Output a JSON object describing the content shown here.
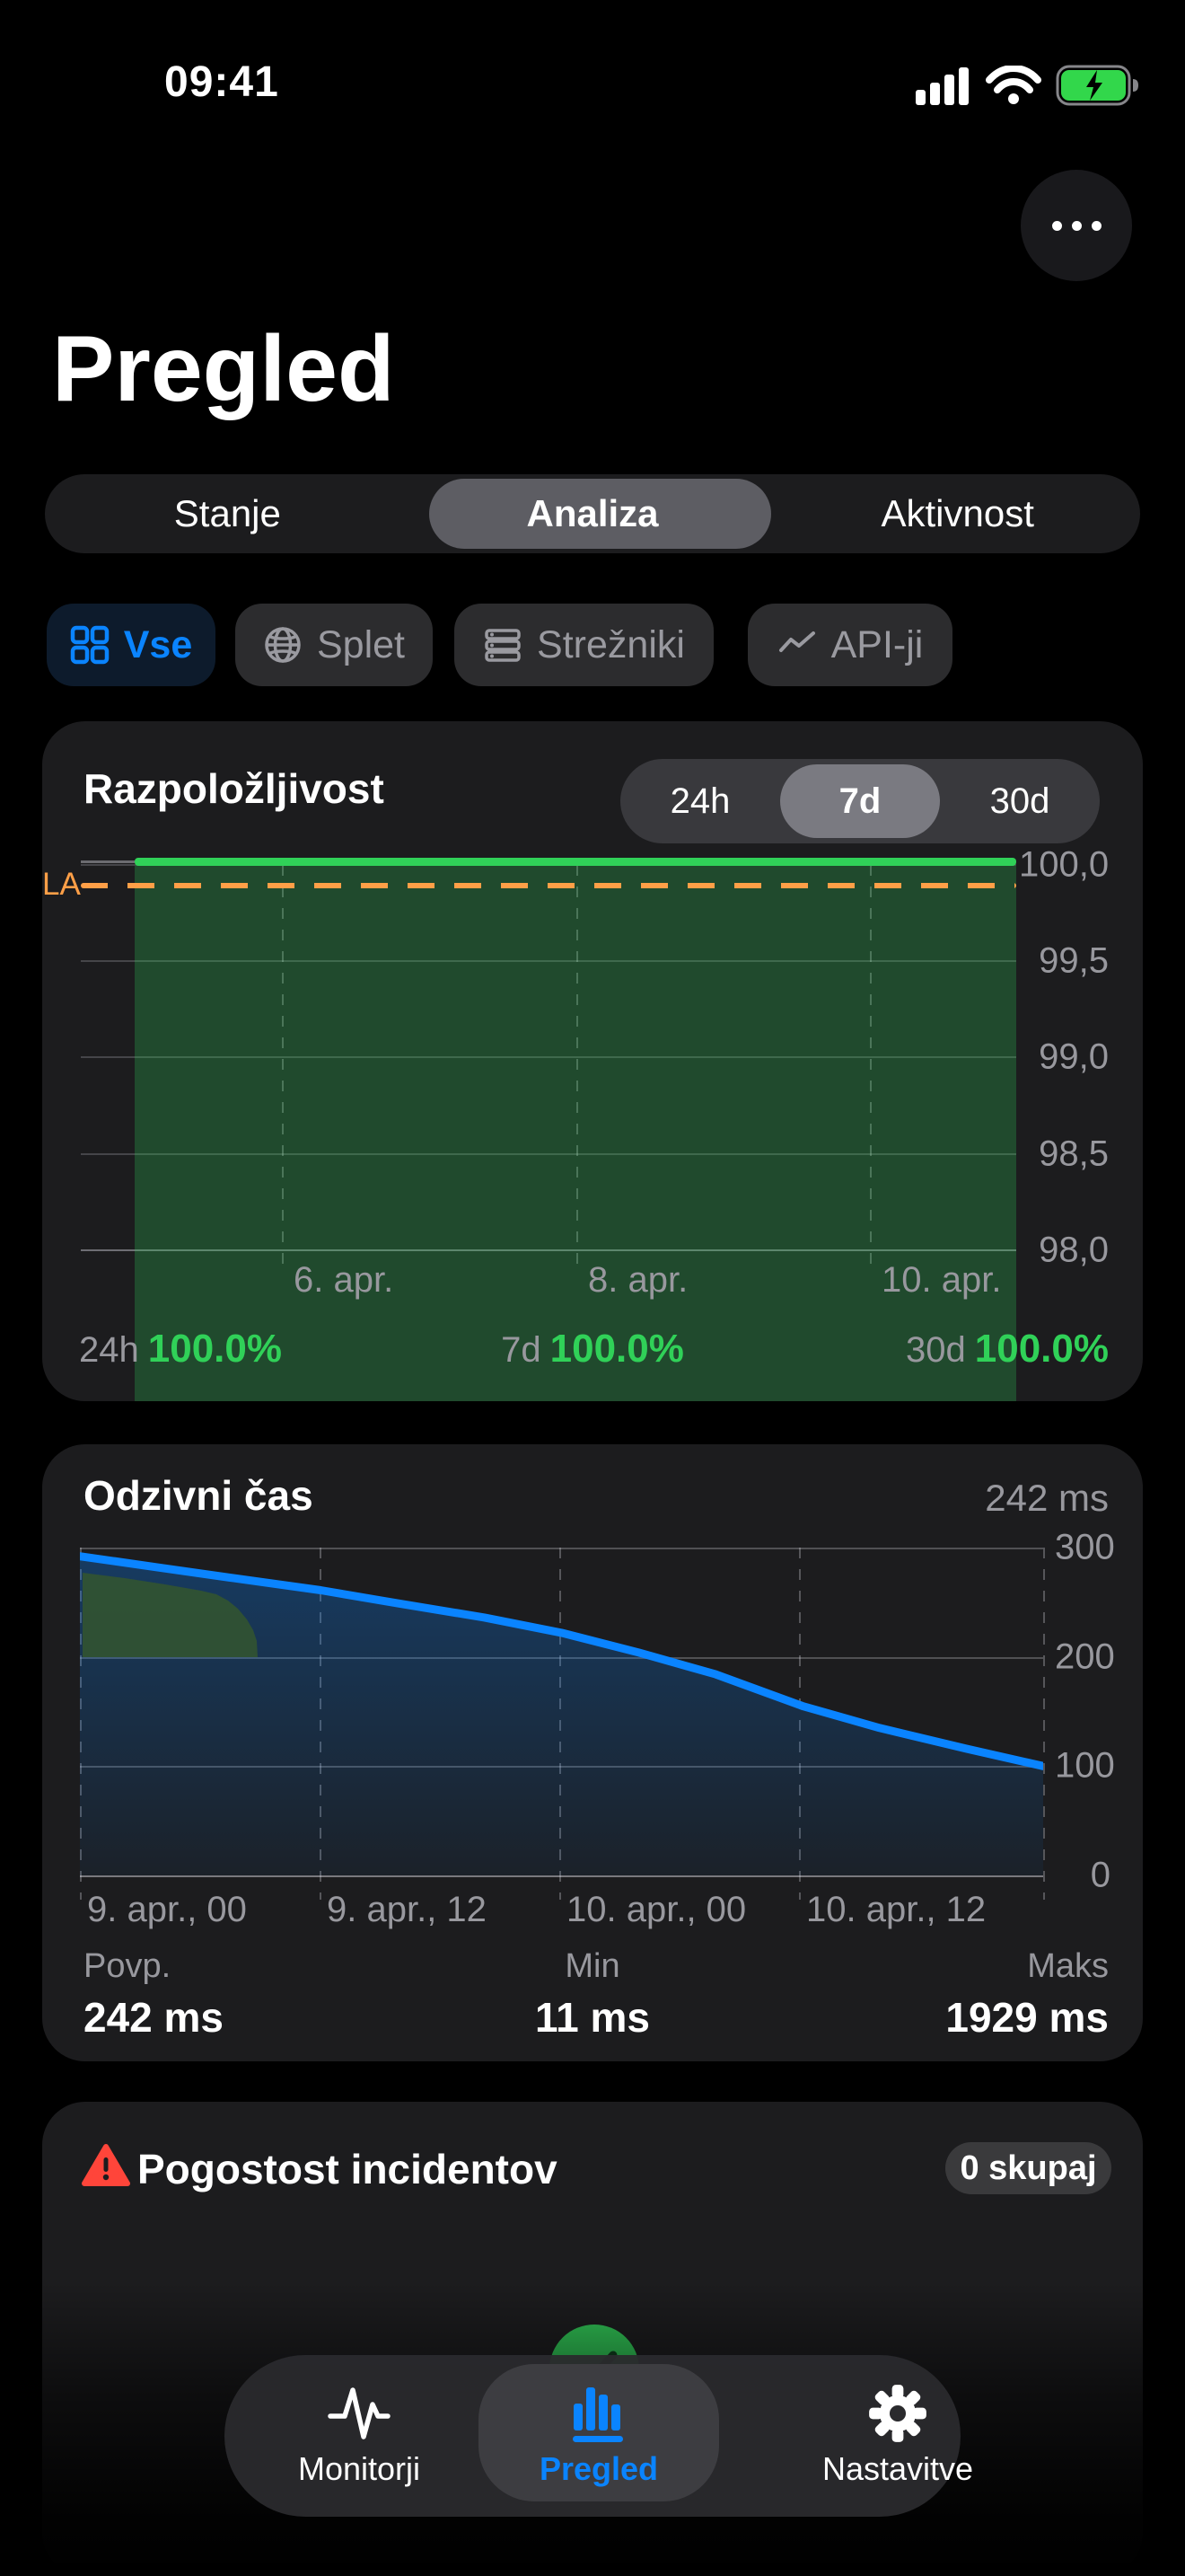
{
  "status_bar": {
    "time": "09:41"
  },
  "header": {
    "title": "Pregled"
  },
  "view_tabs": {
    "items": [
      {
        "label": "Stanje",
        "selected": false
      },
      {
        "label": "Analiza",
        "selected": true
      },
      {
        "label": "Aktivnost",
        "selected": false
      }
    ]
  },
  "filters": {
    "items": [
      {
        "label": "Vse",
        "icon": "grid-icon",
        "selected": true
      },
      {
        "label": "Splet",
        "icon": "globe-icon",
        "selected": false
      },
      {
        "label": "Strežniki",
        "icon": "server-icon",
        "selected": false
      },
      {
        "label": "API-ji",
        "icon": "zigzag-icon",
        "selected": false
      }
    ]
  },
  "availability_card": {
    "title": "Razpoložljivost",
    "ranges": [
      "24h",
      "7d",
      "30d"
    ],
    "selected_range": "7d",
    "sla_label": "LA",
    "y_ticks": [
      "100,0",
      "99,5",
      "99,0",
      "98,5",
      "98,0"
    ],
    "x_ticks": [
      "6. apr.",
      "8. apr.",
      "10. apr."
    ],
    "summary": [
      {
        "label": "24h",
        "value": "100.0%"
      },
      {
        "label": "7d",
        "value": "100.0%"
      },
      {
        "label": "30d",
        "value": "100.0%"
      }
    ]
  },
  "response_card": {
    "title": "Odzivni čas",
    "current": "242 ms",
    "y_ticks": [
      "300",
      "200",
      "100",
      "0"
    ],
    "x_ticks": [
      "9. apr., 00",
      "9. apr., 12",
      "10. apr., 00",
      "10. apr., 12"
    ],
    "stats": [
      {
        "label": "Povp.",
        "value": "242 ms"
      },
      {
        "label": "Min",
        "value": "11 ms"
      },
      {
        "label": "Maks",
        "value": "1929 ms"
      }
    ]
  },
  "incidents_card": {
    "title": "Pogostost incidentov",
    "badge": "0 skupaj"
  },
  "tab_bar": {
    "items": [
      {
        "label": "Monitorji",
        "icon": "pulse-icon",
        "selected": false
      },
      {
        "label": "Pregled",
        "icon": "bar-chart-icon",
        "selected": true
      },
      {
        "label": "Nastavitve",
        "icon": "gear-icon",
        "selected": false
      }
    ]
  },
  "colors": {
    "accent_blue": "#0A84FF",
    "green": "#30D158",
    "orange": "#FF9F47",
    "red": "#FF453A",
    "card_bg": "#1C1C1E",
    "gray_text": "#98989E"
  },
  "chart_data": [
    {
      "type": "area",
      "title": "Razpoložljivost",
      "range": "7d",
      "ylim": [
        98.0,
        100.0
      ],
      "y_ticks": [
        100.0,
        99.5,
        99.0,
        98.5,
        98.0
      ],
      "x_ticks": [
        "6. apr.",
        "8. apr.",
        "10. apr."
      ],
      "series": [
        {
          "name": "uptime_pct",
          "values": [
            100.0,
            100.0,
            100.0,
            100.0,
            100.0,
            100.0,
            100.0
          ]
        }
      ],
      "sla_line": {
        "label": "LA",
        "approx_value": 99.9
      },
      "summary": {
        "24h": "100.0%",
        "7d": "100.0%",
        "30d": "100.0%"
      },
      "legend": "none",
      "grid": true
    },
    {
      "type": "line",
      "title": "Odzivni čas",
      "unit": "ms",
      "ylim": [
        0,
        300
      ],
      "y_ticks": [
        300,
        200,
        100,
        0
      ],
      "x_ticks": [
        "9. apr., 00",
        "9. apr., 12",
        "10. apr., 00",
        "10. apr., 12"
      ],
      "points": [
        [
          0,
          292
        ],
        [
          0.08,
          282
        ],
        [
          0.16,
          272
        ],
        [
          0.25,
          261
        ],
        [
          0.33,
          249
        ],
        [
          0.42,
          236
        ],
        [
          0.5,
          222
        ],
        [
          0.58,
          204
        ],
        [
          0.66,
          184
        ],
        [
          0.75,
          155
        ],
        [
          0.83,
          135
        ],
        [
          0.92,
          116
        ],
        [
          1,
          100
        ]
      ],
      "stats": {
        "avg_ms": 242,
        "min_ms": 11,
        "max_ms": 1929
      },
      "legend": "none",
      "grid": true
    }
  ]
}
